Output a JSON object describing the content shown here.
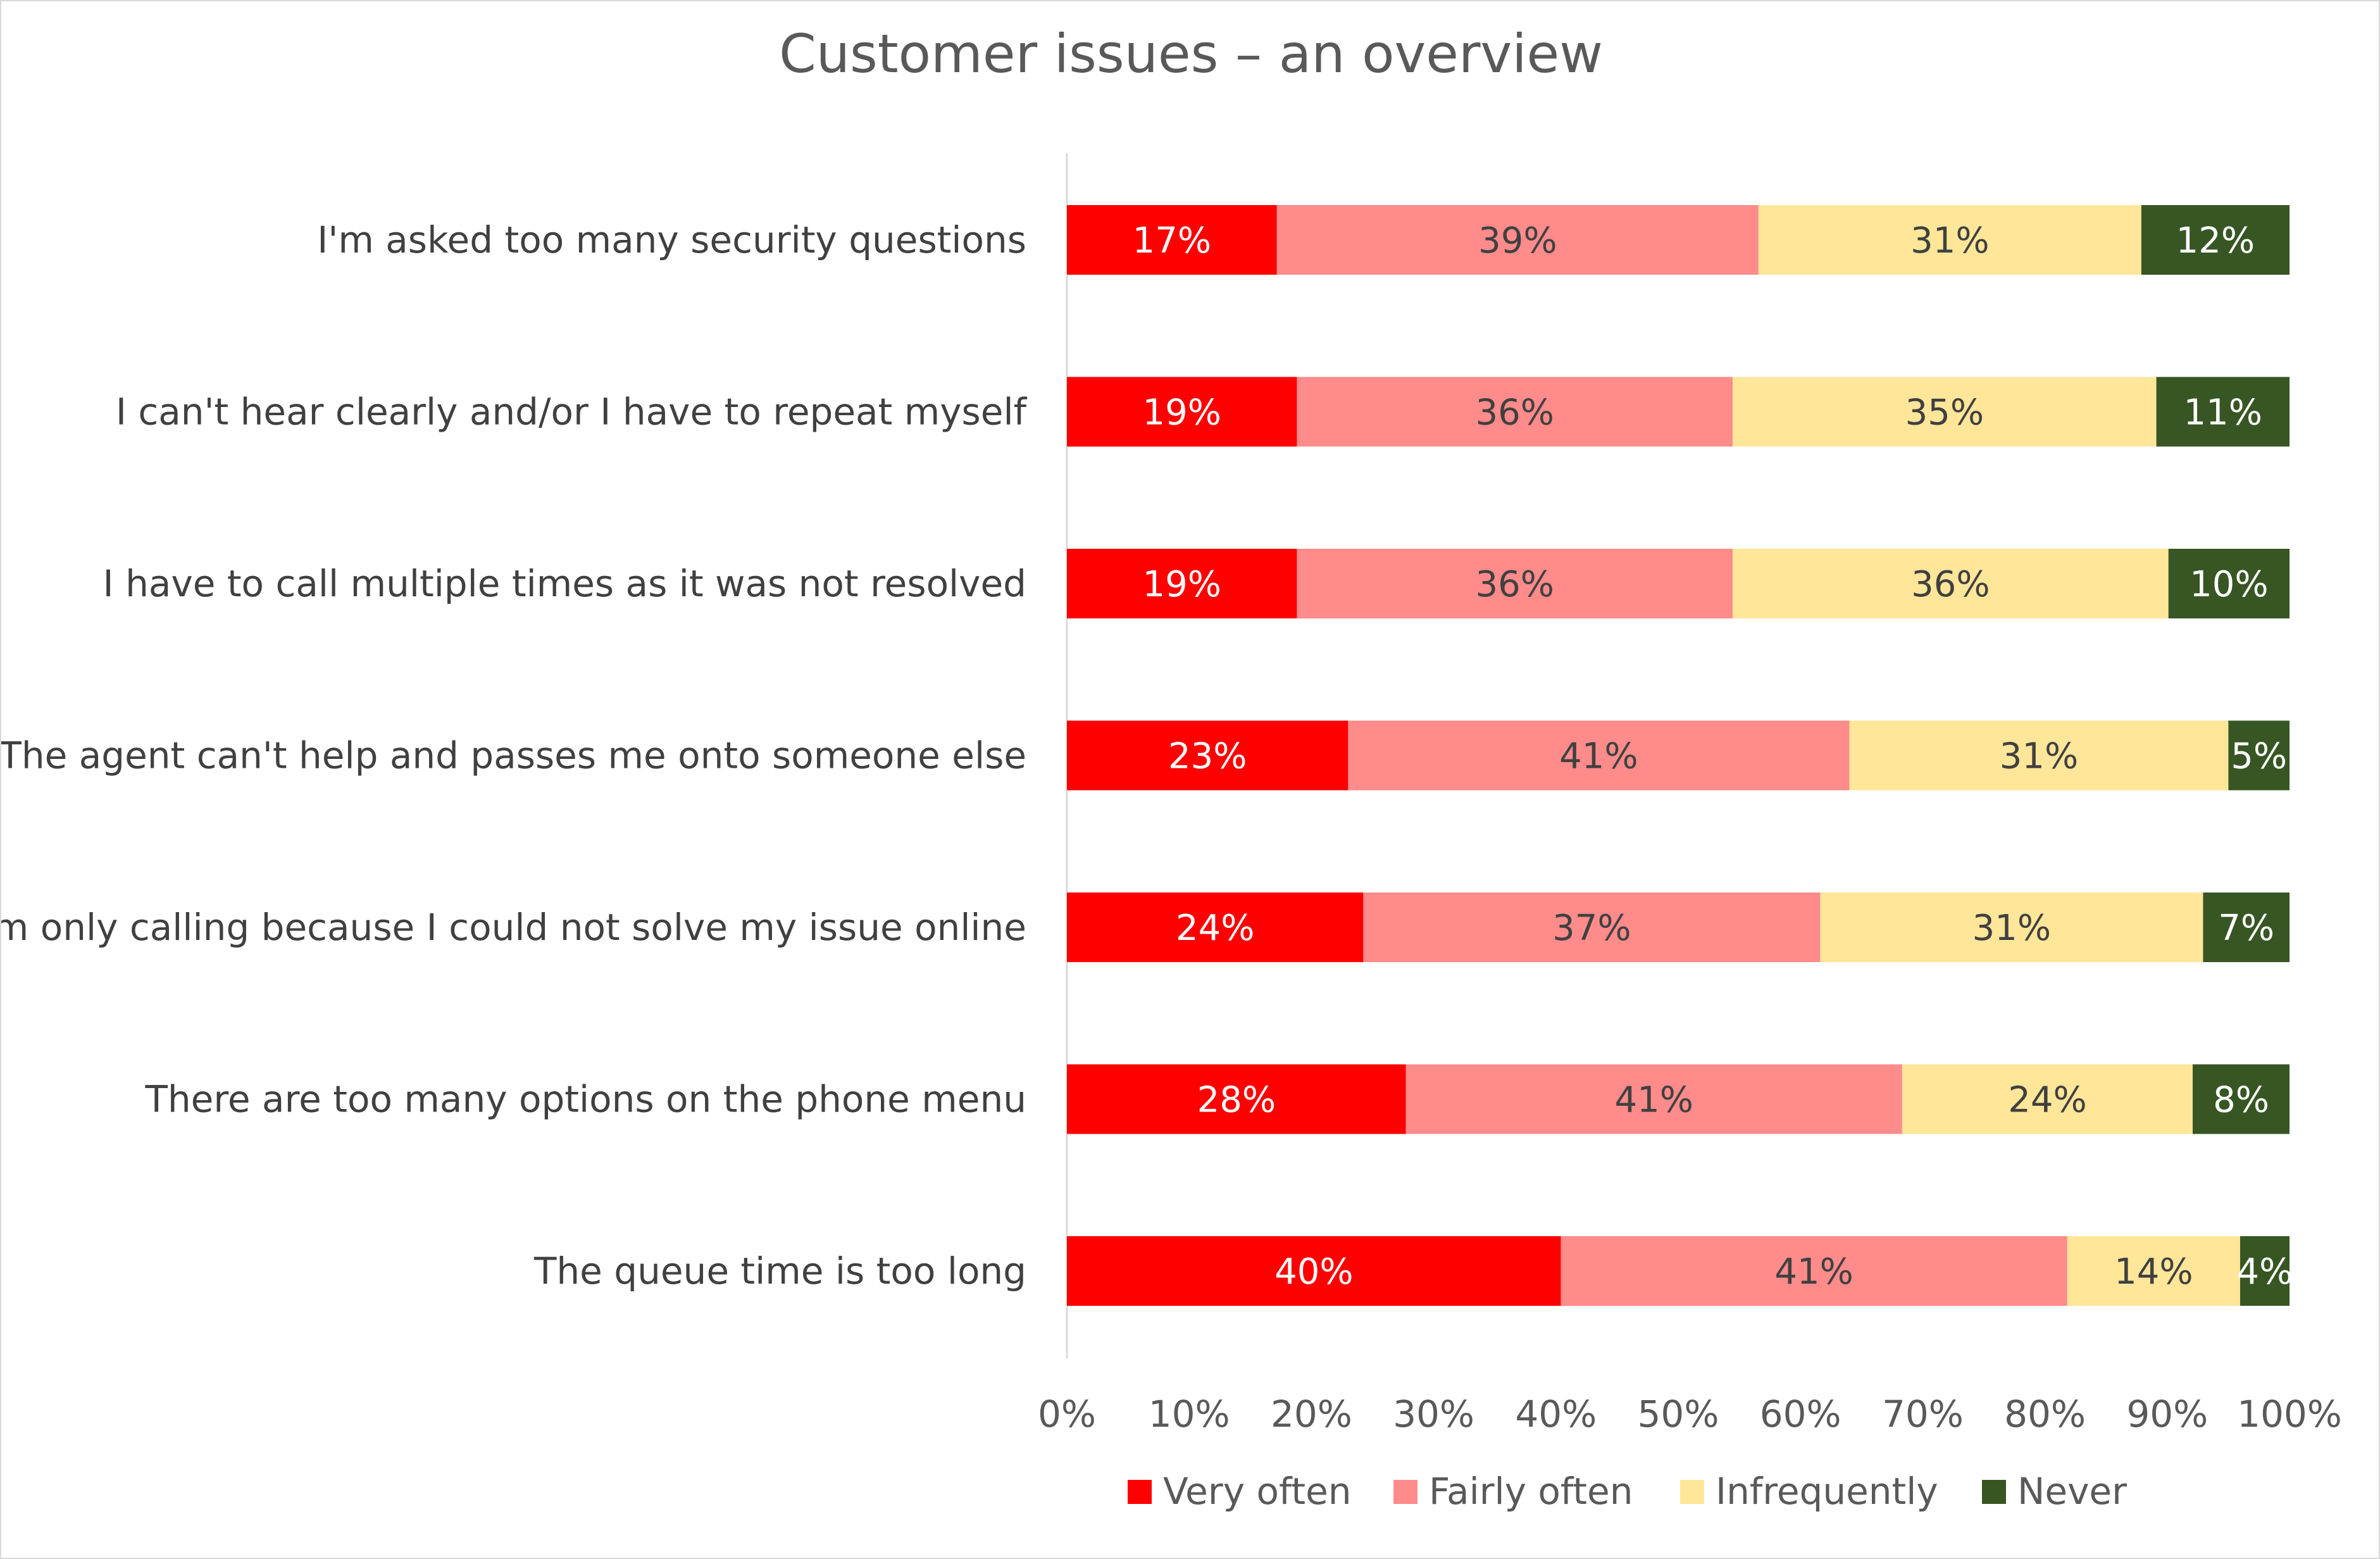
{
  "chart_data": {
    "type": "bar",
    "orientation": "horizontal",
    "stacked": "100%",
    "title": "Customer issues – an overview",
    "categories": [
      "I'm asked too many security questions",
      "I can't hear clearly and/or I have to repeat myself",
      "I have to call multiple times as it was not resolved",
      "The agent can't help and passes me onto someone else",
      "I'm only calling because I could not solve my issue online",
      "There are too many options on the phone menu",
      "The queue time is too long"
    ],
    "series": [
      {
        "name": "Very often",
        "color": "#ff0000",
        "label_color": "#ffffff",
        "values": [
          17,
          19,
          19,
          23,
          24,
          28,
          40
        ]
      },
      {
        "name": "Fairly often",
        "color": "#ff8b8b",
        "label_color": "#404040",
        "values": [
          39,
          36,
          36,
          41,
          37,
          41,
          41
        ]
      },
      {
        "name": "Infrequently",
        "color": "#ffe699",
        "label_color": "#404040",
        "values": [
          31,
          35,
          36,
          31,
          31,
          24,
          14
        ]
      },
      {
        "name": "Never",
        "color": "#375623",
        "label_color": "#ffffff",
        "values": [
          12,
          11,
          10,
          5,
          7,
          8,
          4
        ]
      }
    ],
    "data_labels": [
      [
        "17%",
        "19%",
        "19%",
        "23%",
        "24%",
        "28%",
        "40%"
      ],
      [
        "39%",
        "36%",
        "36%",
        "41%",
        "37%",
        "41%",
        "41%"
      ],
      [
        "31%",
        "35%",
        "36%",
        "31%",
        "31%",
        "24%",
        "14%"
      ],
      [
        "12%",
        "11%",
        "10%",
        "5%",
        "7%",
        "8%",
        "4%"
      ]
    ],
    "x_ticks": [
      "0%",
      "10%",
      "20%",
      "30%",
      "40%",
      "50%",
      "60%",
      "70%",
      "80%",
      "90%",
      "100%"
    ],
    "xlim": [
      0,
      100
    ],
    "grid": false,
    "legend_position": "bottom"
  }
}
